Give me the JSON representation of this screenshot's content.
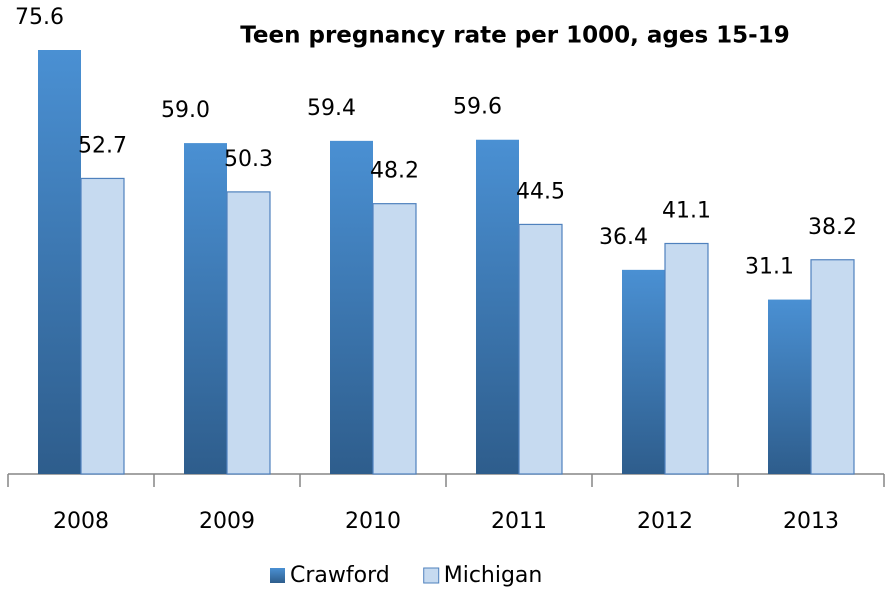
{
  "chart_data": {
    "type": "bar",
    "title": "Teen pregnancy rate per 1000, ages 15-19",
    "categories": [
      "2008",
      "2009",
      "2010",
      "2011",
      "2012",
      "2013"
    ],
    "series": [
      {
        "name": "Crawford",
        "color": "#3f7fc0",
        "values": [
          75.6,
          59.0,
          59.4,
          59.6,
          36.4,
          31.1
        ],
        "value_labels": [
          "75.6",
          "59.0",
          "59.4",
          "59.6",
          "36.4",
          "31.1"
        ]
      },
      {
        "name": "Michigan",
        "color": "#c6daf0",
        "values": [
          52.7,
          50.3,
          48.2,
          44.5,
          41.1,
          38.2
        ],
        "value_labels": [
          "52.7",
          "50.3",
          "48.2",
          "44.5",
          "41.1",
          "38.2"
        ]
      }
    ],
    "legend": "bottom"
  }
}
